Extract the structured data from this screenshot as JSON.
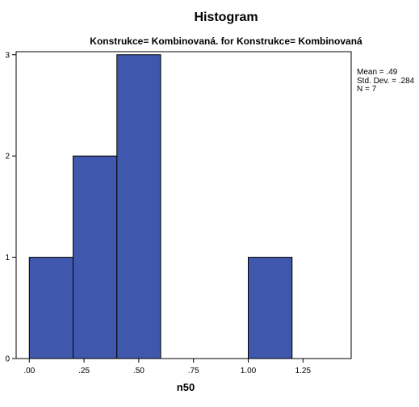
{
  "chart_data": {
    "type": "bar",
    "title": "Histogram",
    "subtitle": "Konstrukce= Kombinovaná. for Konstrukce= Kombinovaná",
    "xlabel": "n50",
    "ylabel": "",
    "bins": [
      {
        "start": 0.0,
        "end": 0.2,
        "count": 1
      },
      {
        "start": 0.2,
        "end": 0.4,
        "count": 2
      },
      {
        "start": 0.4,
        "end": 0.6,
        "count": 3
      },
      {
        "start": 0.6,
        "end": 0.8,
        "count": 0
      },
      {
        "start": 0.8,
        "end": 1.0,
        "count": 0
      },
      {
        "start": 1.0,
        "end": 1.2,
        "count": 1
      }
    ],
    "xlim": [
      -0.06,
      1.47
    ],
    "ylim": [
      0,
      3.03
    ],
    "x_ticks": [
      0,
      0.25,
      0.5,
      0.75,
      1.0,
      1.25
    ],
    "x_tick_labels": [
      ".00",
      ".25",
      ".50",
      ".75",
      "1.00",
      "1.25"
    ],
    "y_ticks": [
      0,
      1,
      2,
      3
    ],
    "y_tick_labels": [
      "0",
      "1",
      "2",
      "3"
    ],
    "bar_color": "#3f57ad",
    "grid": false,
    "legend": "none",
    "stats": {
      "mean": "Mean = .49",
      "std": "Std. Dev. = .284",
      "n": "N = 7"
    }
  }
}
